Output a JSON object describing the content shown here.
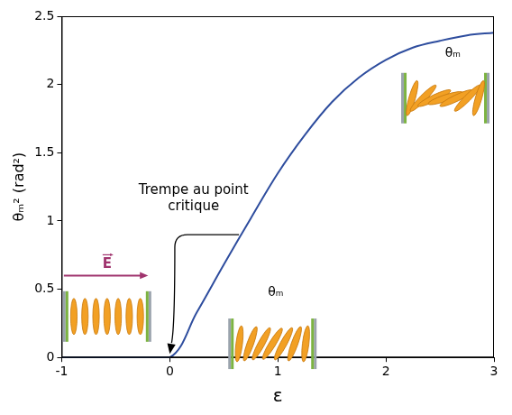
{
  "chart_data": {
    "type": "line",
    "x_label": "ε",
    "y_label": "θₘ² (rad²)",
    "x": [
      -1,
      -0.5,
      0,
      0.25,
      0.5,
      0.75,
      1,
      1.25,
      1.5,
      1.75,
      2,
      2.25,
      2.5,
      2.75,
      3
    ],
    "values": [
      0,
      0,
      0,
      0.33,
      0.68,
      1.02,
      1.35,
      1.63,
      1.87,
      2.05,
      2.18,
      2.27,
      2.32,
      2.36,
      2.38
    ],
    "color": "#2e4d9e",
    "line_style": "solid",
    "marker": "none",
    "xlim": [
      -1,
      3
    ],
    "ylim": [
      0,
      2.5
    ],
    "xticks": [
      -1,
      0,
      1,
      2,
      3
    ],
    "yticks": [
      0,
      0.5,
      1,
      1.5,
      2,
      2.5
    ],
    "grid": false,
    "annotations": [
      "Trempe au point critique",
      "θₘ",
      "θₘ",
      "E"
    ]
  }
}
